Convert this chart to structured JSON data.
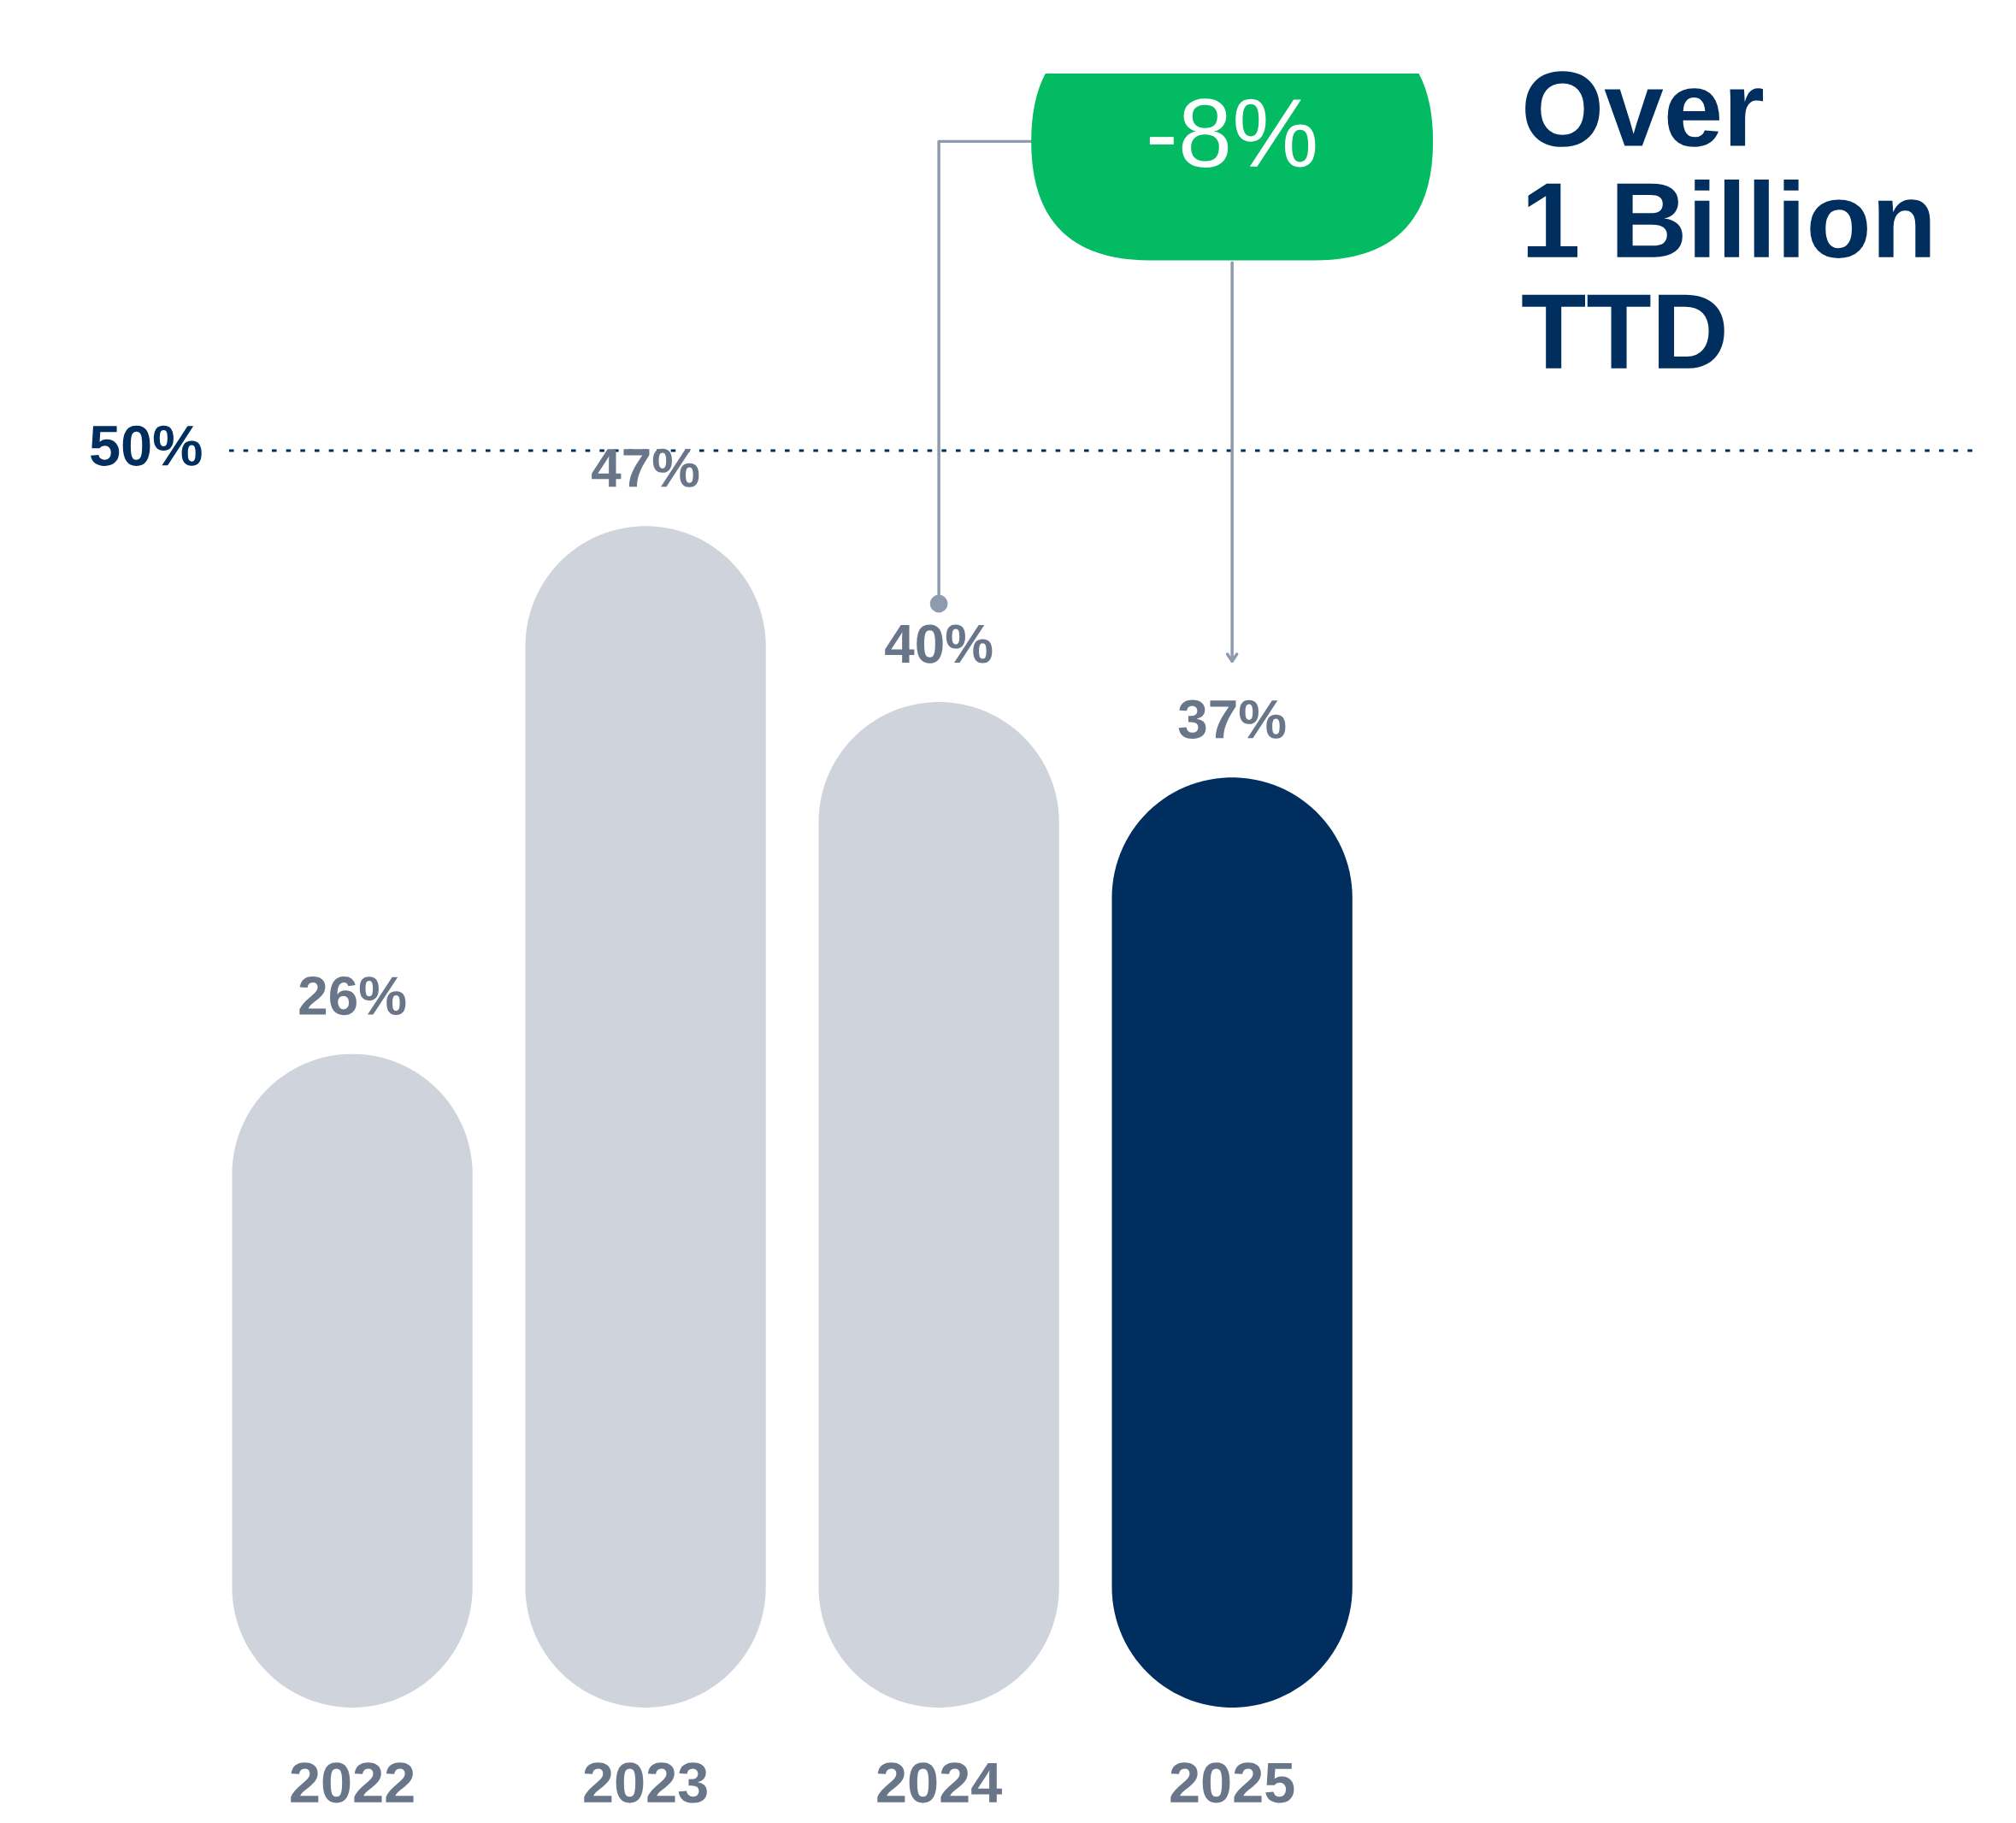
{
  "chart_data": {
    "type": "bar",
    "title": "Over\n1 Billion\nTTD",
    "categories": [
      "2022",
      "2023",
      "2024",
      "2025"
    ],
    "values": [
      26,
      47,
      40,
      37
    ],
    "colors": [
      "#cfd4dc",
      "#cfd4dc",
      "#cfd4dc",
      "#002f5f"
    ],
    "value_labels": [
      "26%",
      "47%",
      "40%",
      "37%"
    ],
    "ref_lines": [
      {
        "axis": "y",
        "value": 50,
        "label": "50%",
        "color": "#002f5f",
        "line_style": "dotted"
      }
    ],
    "annotations": [
      "-8%"
    ],
    "tick_labels": "x"
  }
}
